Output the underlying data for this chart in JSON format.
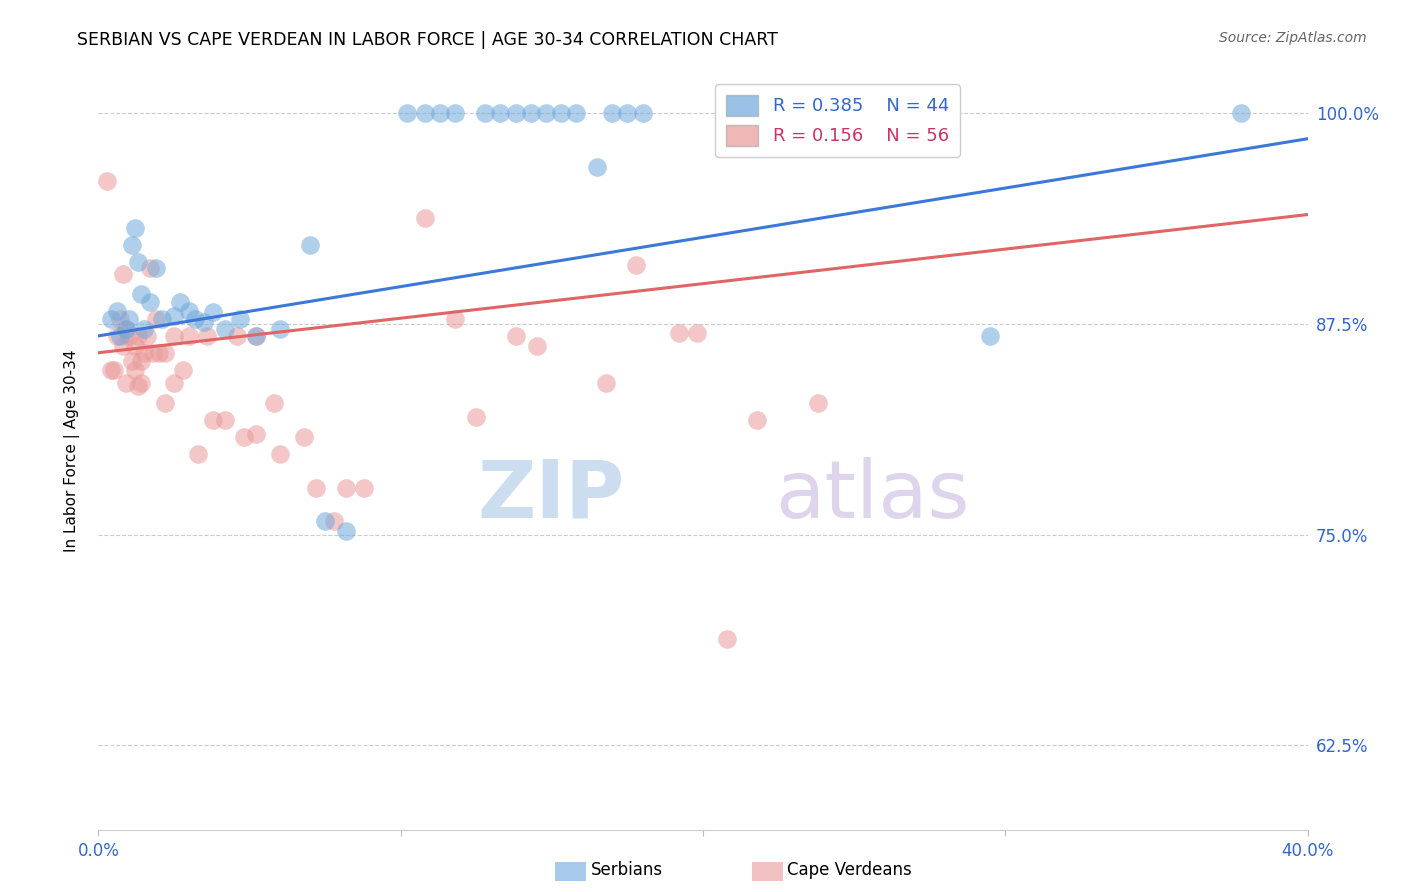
{
  "title": "SERBIAN VS CAPE VERDEAN IN LABOR FORCE | AGE 30-34 CORRELATION CHART",
  "source": "Source: ZipAtlas.com",
  "ylabel": "In Labor Force | Age 30-34",
  "xlim": [
    0.0,
    0.4
  ],
  "ylim": [
    0.575,
    1.025
  ],
  "yticks": [
    0.625,
    0.75,
    0.875,
    1.0
  ],
  "yticklabels": [
    "62.5%",
    "75.0%",
    "87.5%",
    "100.0%"
  ],
  "xticks": [
    0.0,
    0.1,
    0.2,
    0.3,
    0.4
  ],
  "xticklabels": [
    "0.0%",
    "",
    "",
    "",
    "40.0%"
  ],
  "legend_r_serbian": "R = 0.385",
  "legend_n_serbian": "N = 44",
  "legend_r_cape": "R = 0.156",
  "legend_n_cape": "N = 56",
  "serbian_color": "#6fa8dc",
  "cape_color": "#ea9999",
  "serbian_line_color": "#3c78d8",
  "cape_line_color": "#e06666",
  "watermark_zip": "ZIP",
  "watermark_atlas": "atlas",
  "serbian_points": [
    [
      0.004,
      0.878
    ],
    [
      0.006,
      0.883
    ],
    [
      0.007,
      0.868
    ],
    [
      0.009,
      0.872
    ],
    [
      0.01,
      0.878
    ],
    [
      0.011,
      0.922
    ],
    [
      0.012,
      0.932
    ],
    [
      0.013,
      0.912
    ],
    [
      0.014,
      0.893
    ],
    [
      0.015,
      0.872
    ],
    [
      0.017,
      0.888
    ],
    [
      0.019,
      0.908
    ],
    [
      0.021,
      0.878
    ],
    [
      0.025,
      0.88
    ],
    [
      0.027,
      0.888
    ],
    [
      0.03,
      0.883
    ],
    [
      0.032,
      0.878
    ],
    [
      0.035,
      0.876
    ],
    [
      0.038,
      0.882
    ],
    [
      0.042,
      0.872
    ],
    [
      0.047,
      0.878
    ],
    [
      0.052,
      0.868
    ],
    [
      0.06,
      0.872
    ],
    [
      0.07,
      0.922
    ],
    [
      0.075,
      0.758
    ],
    [
      0.082,
      0.752
    ],
    [
      0.102,
      1.0
    ],
    [
      0.108,
      1.0
    ],
    [
      0.113,
      1.0
    ],
    [
      0.118,
      1.0
    ],
    [
      0.128,
      1.0
    ],
    [
      0.133,
      1.0
    ],
    [
      0.138,
      1.0
    ],
    [
      0.143,
      1.0
    ],
    [
      0.148,
      1.0
    ],
    [
      0.153,
      1.0
    ],
    [
      0.158,
      1.0
    ],
    [
      0.165,
      0.968
    ],
    [
      0.17,
      1.0
    ],
    [
      0.175,
      1.0
    ],
    [
      0.18,
      1.0
    ],
    [
      0.248,
      1.0
    ],
    [
      0.295,
      0.868
    ],
    [
      0.378,
      1.0
    ]
  ],
  "cape_points": [
    [
      0.003,
      0.96
    ],
    [
      0.004,
      0.848
    ],
    [
      0.005,
      0.848
    ],
    [
      0.006,
      0.868
    ],
    [
      0.007,
      0.878
    ],
    [
      0.008,
      0.862
    ],
    [
      0.008,
      0.905
    ],
    [
      0.009,
      0.872
    ],
    [
      0.009,
      0.84
    ],
    [
      0.01,
      0.868
    ],
    [
      0.011,
      0.853
    ],
    [
      0.012,
      0.862
    ],
    [
      0.012,
      0.848
    ],
    [
      0.013,
      0.868
    ],
    [
      0.013,
      0.838
    ],
    [
      0.014,
      0.853
    ],
    [
      0.014,
      0.84
    ],
    [
      0.015,
      0.858
    ],
    [
      0.016,
      0.868
    ],
    [
      0.017,
      0.908
    ],
    [
      0.018,
      0.858
    ],
    [
      0.019,
      0.878
    ],
    [
      0.02,
      0.858
    ],
    [
      0.022,
      0.858
    ],
    [
      0.022,
      0.828
    ],
    [
      0.025,
      0.868
    ],
    [
      0.025,
      0.84
    ],
    [
      0.028,
      0.848
    ],
    [
      0.03,
      0.868
    ],
    [
      0.033,
      0.798
    ],
    [
      0.036,
      0.868
    ],
    [
      0.038,
      0.818
    ],
    [
      0.042,
      0.818
    ],
    [
      0.046,
      0.868
    ],
    [
      0.048,
      0.808
    ],
    [
      0.052,
      0.868
    ],
    [
      0.052,
      0.81
    ],
    [
      0.058,
      0.828
    ],
    [
      0.06,
      0.798
    ],
    [
      0.068,
      0.808
    ],
    [
      0.072,
      0.778
    ],
    [
      0.078,
      0.758
    ],
    [
      0.082,
      0.778
    ],
    [
      0.088,
      0.778
    ],
    [
      0.108,
      0.938
    ],
    [
      0.118,
      0.878
    ],
    [
      0.125,
      0.82
    ],
    [
      0.138,
      0.868
    ],
    [
      0.145,
      0.862
    ],
    [
      0.168,
      0.84
    ],
    [
      0.178,
      0.91
    ],
    [
      0.192,
      0.87
    ],
    [
      0.198,
      0.87
    ],
    [
      0.208,
      0.688
    ],
    [
      0.218,
      0.818
    ],
    [
      0.238,
      0.828
    ]
  ],
  "serbian_line": {
    "x0": 0.0,
    "y0": 0.868,
    "x1": 0.4,
    "y1": 0.985
  },
  "cape_line": {
    "x0": 0.0,
    "y0": 0.858,
    "x1": 0.4,
    "y1": 0.94
  }
}
